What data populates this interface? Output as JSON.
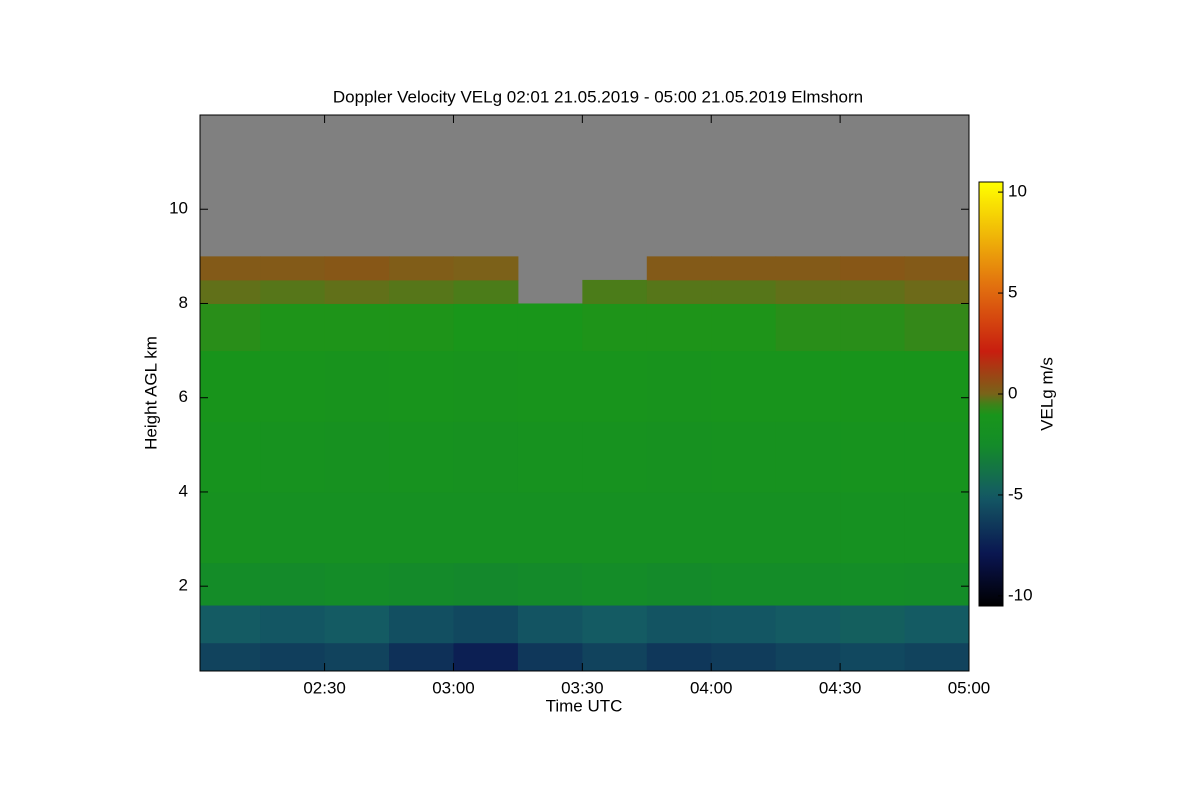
{
  "chart_data": {
    "type": "heatmap",
    "title": "Doppler Velocity VELg   02:01 21.05.2019 - 05:00 21.05.2019 Elmshorn",
    "xlabel": "Time UTC",
    "ylabel": "Height AGL km",
    "colorbar_label": "VELg m/s",
    "xlim": [
      121,
      300
    ],
    "xticks": [
      {
        "value": 150,
        "label": "02:30"
      },
      {
        "value": 180,
        "label": "03:00"
      },
      {
        "value": 210,
        "label": "03:30"
      },
      {
        "value": 240,
        "label": "04:00"
      },
      {
        "value": 270,
        "label": "04:30"
      },
      {
        "value": 300,
        "label": "05:00"
      }
    ],
    "ylim": [
      0.2,
      12
    ],
    "yticks": [
      2,
      4,
      6,
      8,
      10
    ],
    "clim": [
      -10.5,
      10.5
    ],
    "cticks": [
      -10,
      -5,
      0,
      5,
      10
    ],
    "missing_color": "#808080",
    "x_edges": [
      121,
      135,
      150,
      165,
      180,
      195,
      210,
      225,
      240,
      255,
      270,
      285,
      300
    ],
    "y_edges": [
      0.2,
      0.8,
      1.6,
      2.5,
      4,
      5.5,
      7,
      8,
      8.5,
      9,
      12
    ],
    "z": [
      [
        -6,
        -6.2,
        -6,
        -6.8,
        -7.5,
        -6.5,
        -6,
        -6.5,
        -6.3,
        -6,
        -5.8,
        -6
      ],
      [
        -5,
        -5.2,
        -5,
        -5.5,
        -5.8,
        -5.3,
        -5,
        -5.3,
        -5.2,
        -5,
        -4.8,
        -5
      ],
      [
        -2.5,
        -2.6,
        -2.5,
        -2.6,
        -2.7,
        -2.6,
        -2.5,
        -2.6,
        -2.5,
        -2.5,
        -2.4,
        -2.5
      ],
      [
        -1.6,
        -1.8,
        -1.9,
        -1.8,
        -1.9,
        -1.8,
        -1.8,
        -1.9,
        -1.8,
        -1.8,
        -1.7,
        -1.7
      ],
      [
        -1.4,
        -1.5,
        -1.6,
        -1.5,
        -1.6,
        -1.5,
        -1.5,
        -1.6,
        -1.5,
        -1.5,
        -1.4,
        -1.4
      ],
      [
        -1.1,
        -1.2,
        -1.3,
        -1.2,
        -1.3,
        -1.2,
        -1.2,
        -1.3,
        -1.2,
        -1.2,
        -1.1,
        -1.1
      ],
      [
        -0.7,
        -0.8,
        -0.8,
        -0.8,
        -0.9,
        -0.9,
        -0.8,
        -0.8,
        -0.8,
        -0.7,
        -0.7,
        -0.6
      ],
      [
        -0.2,
        -0.3,
        -0.2,
        -0.3,
        -0.4,
        null,
        -0.4,
        -0.3,
        -0.3,
        -0.2,
        -0.2,
        -0.1
      ],
      [
        0.3,
        0.3,
        0.4,
        0.2,
        0.1,
        null,
        null,
        0.3,
        0.3,
        0.3,
        0.4,
        0.3
      ],
      [
        null,
        null,
        null,
        null,
        null,
        null,
        null,
        null,
        null,
        null,
        null,
        null
      ]
    ]
  }
}
